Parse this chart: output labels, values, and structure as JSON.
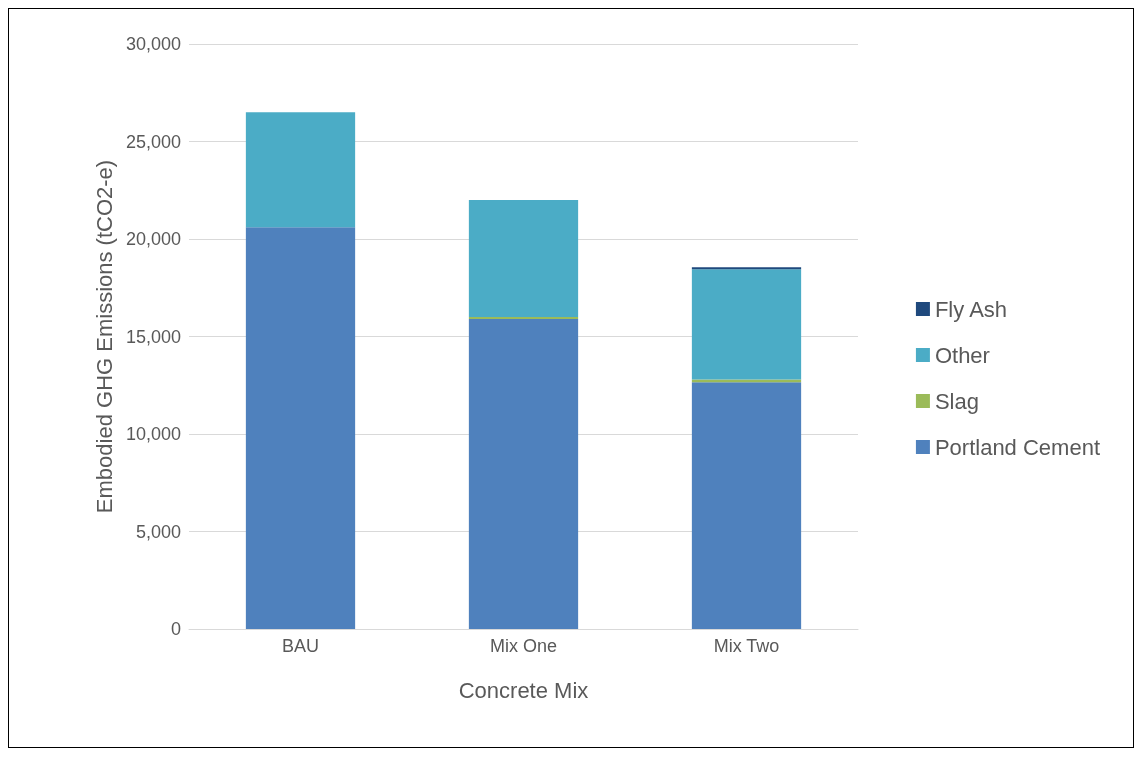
{
  "chart_data": {
    "type": "bar",
    "stacked": true,
    "xlabel": "Concrete Mix",
    "ylabel": "Embodied GHG Emissions (tCO2-e)",
    "categories": [
      "BAU",
      "Mix One",
      "Mix Two"
    ],
    "series": [
      {
        "name": "Portland Cement",
        "color": "#4f81bd",
        "values": [
          20600,
          15900,
          12650
        ]
      },
      {
        "name": "Slag",
        "color": "#9bbb59",
        "values": [
          0,
          100,
          150
        ]
      },
      {
        "name": "Other",
        "color": "#4bacc6",
        "values": [
          5900,
          6000,
          5650
        ]
      },
      {
        "name": "Fly Ash",
        "color": "#1f497d",
        "values": [
          0,
          0,
          100
        ]
      }
    ],
    "ylim": [
      0,
      30000
    ],
    "yticks": [
      0,
      {
        "value": 5000,
        "label": "5,000"
      },
      {
        "value": 10000,
        "label": "10,000"
      },
      {
        "value": 15000,
        "label": "15,000"
      },
      {
        "value": 20000,
        "label": "20,000"
      },
      {
        "value": 25000,
        "label": "25,000"
      },
      {
        "value": 30000,
        "label": "30,000"
      }
    ],
    "grid": "y",
    "legend": "right"
  }
}
